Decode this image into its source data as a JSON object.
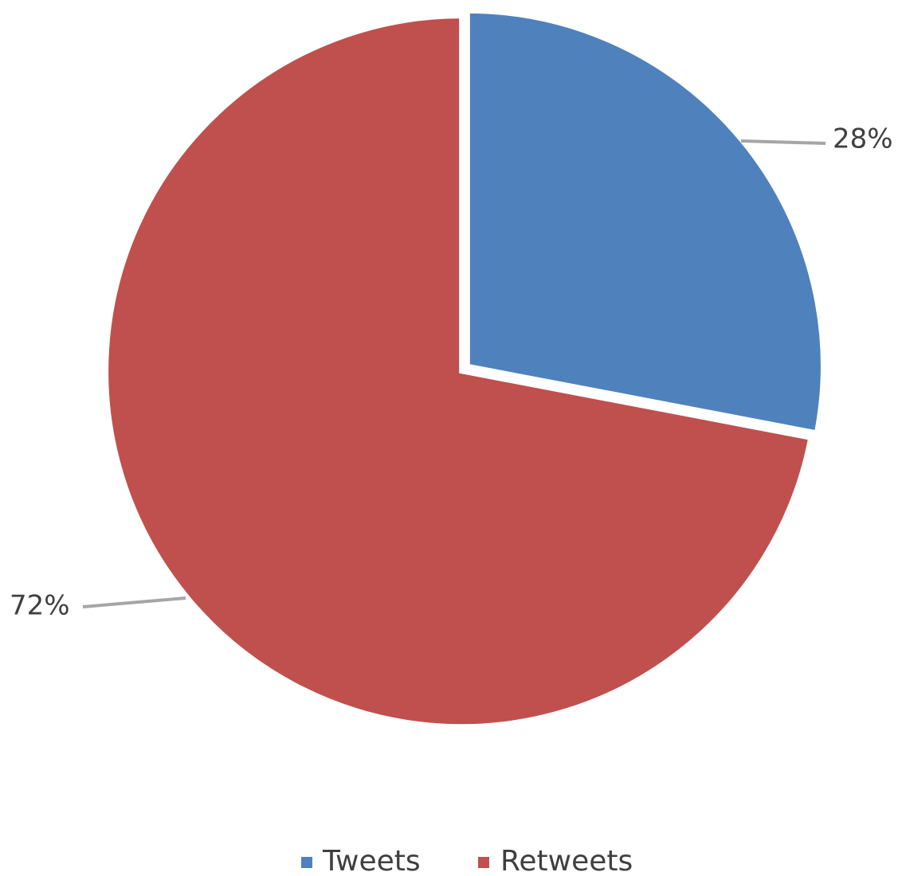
{
  "chart_data": {
    "type": "pie",
    "title": "",
    "series": [
      {
        "labels": [
          "Tweets",
          "Retweets"
        ],
        "values": [
          28,
          72
        ],
        "colors": [
          "#4F81BD",
          "#C0504D"
        ]
      }
    ],
    "data_labels": [
      "28%",
      "72%"
    ],
    "legend": {
      "placement": "bottom",
      "entries": [
        "Tweets",
        "Retweets"
      ]
    },
    "exploded": true
  }
}
